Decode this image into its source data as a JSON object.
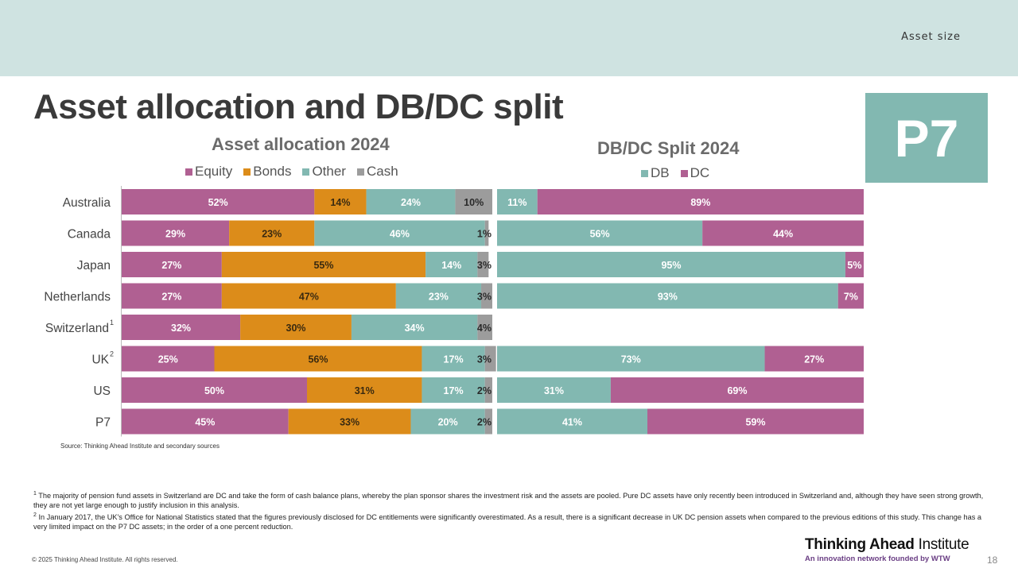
{
  "header": {
    "section_label": "Asset size",
    "title": "Asset allocation and DB/DC split",
    "badge": "P7"
  },
  "colors": {
    "equity": "#b06092",
    "bonds": "#dc8c1a",
    "other": "#82b8b1",
    "cash": "#9c9c9c",
    "db": "#82b8b1",
    "dc": "#b06092"
  },
  "chart_data": [
    {
      "type": "bar",
      "orientation": "horizontal-stacked-100",
      "title": "Asset allocation 2024",
      "legend_position": "top",
      "categories": [
        "Australia",
        "Canada",
        "Japan",
        "Netherlands",
        "Switzerland",
        "UK",
        "US",
        "P7"
      ],
      "category_superscripts": [
        "",
        "",
        "",
        "",
        "1",
        "2",
        "",
        ""
      ],
      "series": [
        {
          "name": "Equity",
          "values": [
            52,
            29,
            27,
            27,
            32,
            25,
            50,
            45
          ]
        },
        {
          "name": "Bonds",
          "values": [
            14,
            23,
            55,
            47,
            30,
            56,
            31,
            33
          ]
        },
        {
          "name": "Other",
          "values": [
            24,
            46,
            14,
            23,
            34,
            17,
            17,
            20
          ]
        },
        {
          "name": "Cash",
          "values": [
            10,
            1,
            3,
            3,
            4,
            3,
            2,
            2
          ]
        }
      ],
      "xlim": [
        0,
        100
      ],
      "unit": "%"
    },
    {
      "type": "bar",
      "orientation": "horizontal-stacked-100",
      "title": "DB/DC Split 2024",
      "legend_position": "top",
      "categories": [
        "Australia",
        "Canada",
        "Japan",
        "Netherlands",
        "Switzerland",
        "UK",
        "US",
        "P7"
      ],
      "series": [
        {
          "name": "DB",
          "values": [
            11,
            56,
            95,
            93,
            null,
            73,
            31,
            41
          ]
        },
        {
          "name": "DC",
          "values": [
            89,
            44,
            5,
            7,
            null,
            27,
            69,
            59
          ]
        }
      ],
      "xlim": [
        0,
        100
      ],
      "unit": "%"
    }
  ],
  "source": "Source: Thinking Ahead Institute and secondary sources",
  "footnotes": [
    {
      "marker": "1",
      "text": "The majority of pension fund assets in Switzerland are DC and take the form of cash balance plans, whereby the plan sponsor shares the investment risk and the assets are pooled. Pure DC assets have only recently been introduced in Switzerland and, although they have seen strong growth, they are not yet large enough to justify inclusion in this analysis."
    },
    {
      "marker": "2",
      "text": "In January 2017,  the UK's Office for National Statistics stated that the figures previously disclosed for DC entitlements were significantly overestimated. As a result, there is a significant decrease in UK DC pension assets when compared to the previous editions of this study. This change has a very limited impact on the P7 DC assets; in the order of a one percent reduction."
    }
  ],
  "footer": {
    "copyright": "© 2025 Thinking Ahead Institute. All rights reserved.",
    "brand_bold": "Thinking Ahead",
    "brand_rest": " Institute",
    "brand_tagline": "An innovation network founded by WTW",
    "page_number": "18"
  }
}
